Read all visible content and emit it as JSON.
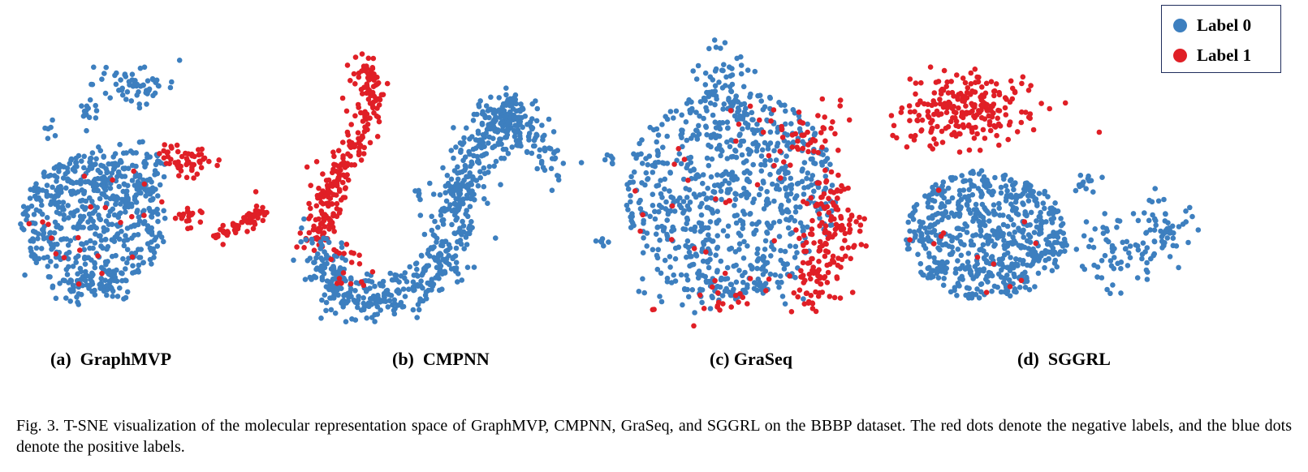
{
  "colors": {
    "label0": "#3d7fbf",
    "label1": "#e01f26"
  },
  "legend": [
    {
      "label": "Label 0",
      "color": "#3d7fbf"
    },
    {
      "label": "Label 1",
      "color": "#e01f26"
    }
  ],
  "panels": [
    {
      "caption": "(a)  GraphMVP"
    },
    {
      "caption": "(b)  CMPNN"
    },
    {
      "caption": "(c) GraSeq"
    },
    {
      "caption": "(d)  SGGRL"
    }
  ],
  "figure_caption": "Fig. 3.  T-SNE visualization of the molecular representation space of GraphMVP, CMPNN, GraSeq, and SGGRL on the BBBP dataset. The red dots denote the negative labels, and the blue dots denote the positive labels.",
  "chart_data": {
    "type": "scatter",
    "series": [
      {
        "name": "Label 0",
        "color": "#3d7fbf"
      },
      {
        "name": "Label 1",
        "color": "#e01f26"
      }
    ],
    "panels": [
      "GraphMVP",
      "CMPNN",
      "GraSeq",
      "SGGRL"
    ]
  }
}
